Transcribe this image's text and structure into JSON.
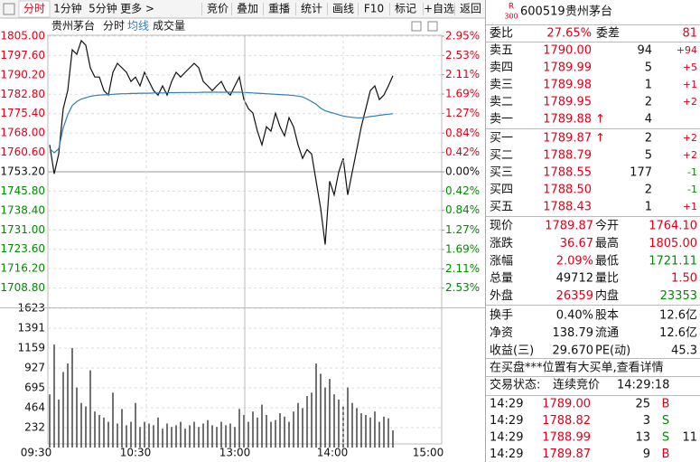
{
  "toolbar": [
    "分时",
    "1分钟",
    "5分钟",
    "更多 >",
    "竞价",
    "叠加",
    "重播",
    "统计",
    "画线",
    "F10",
    "标记",
    "+自选",
    "返回"
  ],
  "chart_header": {
    "name": "贵州茅台",
    "volume_label": "成交量"
  },
  "time_axis": [
    "09:30",
    "10:30",
    "13:00",
    "14:00",
    "15:00"
  ],
  "chart_data": [
    {
      "type": "line",
      "ylim": [
        1701.4,
        1805
      ],
      "yticks": [
        {
          "value": 1805,
          "label": "1805.00"
        },
        {
          "value": 1797.6,
          "label": "1797.60"
        },
        {
          "value": 1790.2,
          "label": "1790.20"
        },
        {
          "value": 1782.8,
          "label": "1782.80"
        },
        {
          "value": 1775.4,
          "label": "1775.40"
        },
        {
          "value": 1768,
          "label": "1768.00"
        },
        {
          "value": 1760.6,
          "label": "1760.60"
        },
        {
          "value": 1753.2,
          "label": "1753.20"
        },
        {
          "value": 1745.8,
          "label": "1745.80"
        },
        {
          "value": 1738.4,
          "label": "1738.40"
        },
        {
          "value": 1731,
          "label": "1731.00"
        },
        {
          "value": 1723.6,
          "label": "1723.60"
        },
        {
          "value": 1716.2,
          "label": "1716.20"
        },
        {
          "value": 1708.8,
          "label": "1708.80"
        }
      ],
      "y2lim": [
        -2.95,
        2.95
      ],
      "y2ticks": [
        {
          "value": 2.95,
          "label": "2.95%"
        },
        {
          "value": 2.53,
          "label": "2.53%"
        },
        {
          "value": 2.11,
          "label": "2.11%"
        },
        {
          "value": 1.69,
          "label": "1.69%"
        },
        {
          "value": 1.27,
          "label": "1.27%"
        },
        {
          "value": 0.84,
          "label": "0.84%"
        },
        {
          "value": 0.42,
          "label": "0.42%"
        },
        {
          "value": 0,
          "label": "0.00%"
        },
        {
          "value": -0.42,
          "label": "0.42%"
        },
        {
          "value": -0.84,
          "label": "0.84%"
        },
        {
          "value": -1.27,
          "label": "1.27%"
        },
        {
          "value": -1.69,
          "label": "1.69%"
        },
        {
          "value": -2.11,
          "label": "2.11%"
        },
        {
          "value": -2.53,
          "label": "2.53%"
        }
      ],
      "series": [
        {
          "name": "分时",
          "color": "#111111",
          "values": [
            1763.5,
            1752.4,
            1760.0,
            1777.3,
            1784.2,
            1799.8,
            1798.1,
            1803.3,
            1801.5,
            1792.9,
            1789.4,
            1789.4,
            1784.2,
            1782.5,
            1791.2,
            1794.6,
            1792.9,
            1791.2,
            1787.7,
            1789.4,
            1786.0,
            1791.2,
            1787.7,
            1784.2,
            1782.5,
            1786.0,
            1782.5,
            1787.7,
            1791.2,
            1789.4,
            1791.2,
            1792.9,
            1794.6,
            1792.9,
            1787.7,
            1786.0,
            1784.2,
            1786.0,
            1787.7,
            1784.2,
            1782.5,
            1786.0,
            1789.4,
            1780.8,
            1777.3,
            1775.6,
            1768.7,
            1763.5,
            1770.4,
            1768.7,
            1775.6,
            1770.4,
            1766.9,
            1773.9,
            1770.4,
            1763.5,
            1758.3,
            1761.7,
            1760.0,
            1749.6,
            1739.3,
            1725.4,
            1749.6,
            1744.4,
            1753.1,
            1758.3,
            1744.4,
            1753.1,
            1761.7,
            1770.4,
            1777.3,
            1784.2,
            1786.0,
            1780.8,
            1782.5,
            1786.0,
            1789.9
          ]
        },
        {
          "name": "均线",
          "color": "#2f7fb5",
          "values": [
            1762.0,
            1760.5,
            1762.0,
            1770.0,
            1775.0,
            1778.5,
            1780.0,
            1781.0,
            1781.5,
            1782.0,
            1782.3,
            1782.5,
            1782.6,
            1782.7,
            1782.8,
            1782.9,
            1783.0,
            1783.0,
            1783.1,
            1783.1,
            1783.2,
            1783.2,
            1783.2,
            1783.3,
            1783.3,
            1783.3,
            1783.4,
            1783.4,
            1783.4,
            1783.5,
            1783.5,
            1783.5,
            1783.5,
            1783.5,
            1783.6,
            1783.6,
            1783.6,
            1783.6,
            1783.6,
            1783.6,
            1783.6,
            1783.6,
            1783.6,
            1783.5,
            1783.4,
            1783.3,
            1783.2,
            1783.1,
            1783.0,
            1782.9,
            1782.8,
            1782.7,
            1782.6,
            1782.5,
            1782.3,
            1782.1,
            1781.8,
            1781.0,
            1780.0,
            1779.0,
            1777.5,
            1776.5,
            1776.0,
            1775.5,
            1775.0,
            1774.5,
            1774.2,
            1774.0,
            1773.8,
            1773.8,
            1774.0,
            1774.3,
            1774.5,
            1774.8,
            1775.0,
            1775.2,
            1775.4
          ]
        }
      ]
    },
    {
      "type": "bar",
      "color": "#444444",
      "ylim": [
        0,
        1623
      ],
      "yticks": [
        1623,
        1391,
        1159,
        927,
        695,
        464,
        232
      ],
      "values": [
        620,
        1200,
        560,
        880,
        980,
        1160,
        700,
        520,
        480,
        900,
        420,
        380,
        350,
        300,
        640,
        280,
        450,
        260,
        300,
        520,
        240,
        300,
        280,
        260,
        350,
        220,
        280,
        240,
        260,
        300,
        220,
        260,
        300,
        240,
        280,
        320,
        260,
        240,
        300,
        260,
        280,
        240,
        450,
        380,
        300,
        420,
        350,
        500,
        380,
        300,
        320,
        400,
        360,
        300,
        420,
        520,
        460,
        600,
        640,
        980,
        860,
        700,
        800,
        620,
        560,
        480,
        700,
        520,
        460,
        400,
        380,
        350,
        420,
        300,
        360,
        340,
        200
      ]
    }
  ],
  "quote_header": {
    "badge_top": "R",
    "badge_bottom": "300",
    "code": "600519",
    "name": "贵州茅台"
  },
  "ratio": [
    "委比",
    "27.65%",
    "委差",
    "81"
  ],
  "asks": [
    {
      "label": "卖五",
      "price": "1790.00",
      "volume": "94",
      "change": "+94"
    },
    {
      "label": "卖四",
      "price": "1789.99",
      "volume": "5",
      "change": "+5"
    },
    {
      "label": "卖三",
      "price": "1789.98",
      "volume": "1",
      "change": "+1"
    },
    {
      "label": "卖二",
      "price": "1789.95",
      "volume": "2",
      "change": "+2"
    },
    {
      "label": "卖一",
      "price": "1789.88",
      "flag": "↑",
      "volume": "4"
    }
  ],
  "bids": [
    {
      "label": "买一",
      "price": "1789.87",
      "flag": "↑",
      "volume": "2",
      "change": "+2"
    },
    {
      "label": "买二",
      "price": "1788.79",
      "volume": "5",
      "change": "+2"
    },
    {
      "label": "买三",
      "price": "1788.55",
      "volume": "177",
      "change": "-1"
    },
    {
      "label": "买四",
      "price": "1788.50",
      "volume": "2",
      "change": "-1"
    },
    {
      "label": "买五",
      "price": "1788.43",
      "volume": "1",
      "change": "+1"
    }
  ],
  "stats": [
    {
      "cells": [
        "现价",
        "1789.87",
        "今开",
        "1764.10"
      ],
      "colors": [
        "#e0001b",
        "#e0001b"
      ]
    },
    {
      "cells": [
        "涨跌",
        "36.67",
        "最高",
        "1805.00"
      ],
      "colors": [
        "#e0001b",
        "#e0001b"
      ]
    },
    {
      "cells": [
        "涨幅",
        "2.09%",
        "最低",
        "1721.11"
      ],
      "colors": [
        "#e0001b",
        "#008a00"
      ]
    },
    {
      "cells": [
        "总量",
        "49712",
        "量比",
        "1.50"
      ],
      "colors": [
        "#111111",
        "#e0001b"
      ]
    },
    {
      "cells": [
        "外盘",
        "26359",
        "内盘",
        "23353"
      ],
      "colors": [
        "#e0001b",
        "#008a00"
      ]
    },
    {
      "cells": [
        "换手",
        "0.40%",
        "股本",
        "12.6亿"
      ],
      "colors": [
        "#111111",
        "#111111"
      ]
    },
    {
      "cells": [
        "净资",
        "138.79",
        "流通",
        "12.6亿"
      ],
      "colors": [
        "#111111",
        "#111111"
      ]
    },
    {
      "cells": [
        "收益(三)",
        "29.670",
        "PE(动)",
        "45.3"
      ],
      "colors": [
        "#111111",
        "#111111"
      ]
    }
  ],
  "notice": "在买盘***位置有大买单,查看详情",
  "status": {
    "label": "交易状态:",
    "value": "连续竞价",
    "time": "14:29:18"
  },
  "trades": [
    {
      "time": "14:29",
      "price": "1789.00",
      "volume": "25",
      "side": "B"
    },
    {
      "time": "14:29",
      "price": "1788.82",
      "volume": "3",
      "side": "S"
    },
    {
      "time": "14:29",
      "price": "1788.99",
      "volume": "13",
      "side": "S",
      "extra": "11"
    },
    {
      "time": "14:29",
      "price": "1789.87",
      "volume": "9",
      "side": "B"
    }
  ]
}
